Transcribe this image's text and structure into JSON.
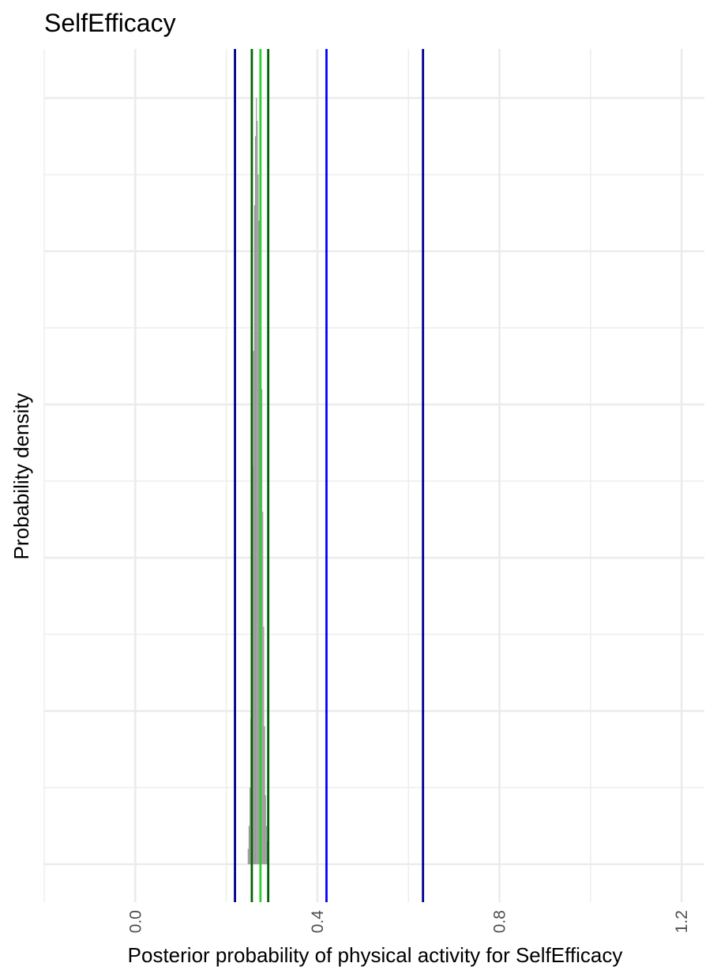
{
  "chart_data": {
    "type": "histogram",
    "title": "SelfEfficacy",
    "xlabel": "Posterior probability of physical activity for SelfEfficacy",
    "ylabel": "Probability density",
    "xlim": [
      -0.2,
      1.25
    ],
    "x_ticks": [
      0.0,
      0.4,
      0.8,
      1.2
    ],
    "x_tick_labels": [
      "0.0",
      "0.4",
      "0.8",
      "1.2"
    ],
    "y_ticks_shown": false,
    "grid": true,
    "legend": "none",
    "histogram": {
      "color": "#999999",
      "bins": [
        {
          "x": 0.248,
          "density": 0.02
        },
        {
          "x": 0.25,
          "density": 0.05
        },
        {
          "x": 0.252,
          "density": 0.1
        },
        {
          "x": 0.254,
          "density": 0.19
        },
        {
          "x": 0.256,
          "density": 0.33
        },
        {
          "x": 0.258,
          "density": 0.52
        },
        {
          "x": 0.26,
          "density": 0.67
        },
        {
          "x": 0.262,
          "density": 0.86
        },
        {
          "x": 0.264,
          "density": 0.95
        },
        {
          "x": 0.266,
          "density": 1.0
        },
        {
          "x": 0.268,
          "density": 0.97
        },
        {
          "x": 0.27,
          "density": 0.9
        },
        {
          "x": 0.272,
          "density": 0.84
        },
        {
          "x": 0.274,
          "density": 0.79
        },
        {
          "x": 0.276,
          "density": 0.72
        },
        {
          "x": 0.278,
          "density": 0.62
        },
        {
          "x": 0.28,
          "density": 0.46
        },
        {
          "x": 0.282,
          "density": 0.31
        },
        {
          "x": 0.284,
          "density": 0.18
        },
        {
          "x": 0.286,
          "density": 0.09
        },
        {
          "x": 0.288,
          "density": 0.05
        },
        {
          "x": 0.29,
          "density": 0.03
        },
        {
          "x": 0.293,
          "density": 0.015
        }
      ]
    },
    "vertical_lines": [
      {
        "x": 0.219,
        "color": "#00008b"
      },
      {
        "x": 0.632,
        "color": "#00008b"
      },
      {
        "x": 0.42,
        "color": "#0000ff"
      },
      {
        "x": 0.256,
        "color": "#006400"
      },
      {
        "x": 0.292,
        "color": "#006400"
      },
      {
        "x": 0.275,
        "color": "#32cd32"
      }
    ]
  }
}
